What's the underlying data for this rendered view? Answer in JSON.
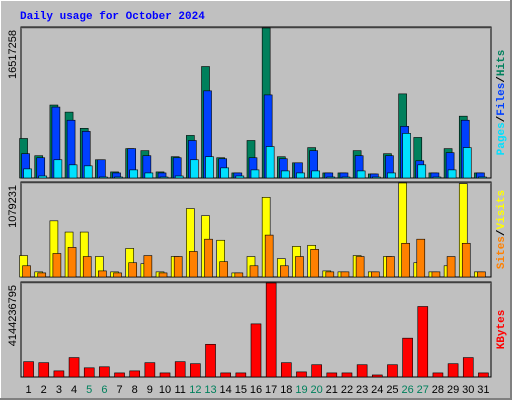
{
  "chart_data": {
    "type": "bar",
    "title": "Daily usage for October 2024",
    "legend_separator": "/",
    "categories": [
      "1",
      "2",
      "3",
      "4",
      "5",
      "6",
      "7",
      "8",
      "9",
      "10",
      "11",
      "12",
      "13",
      "14",
      "15",
      "16",
      "17",
      "18",
      "19",
      "20",
      "21",
      "22",
      "23",
      "24",
      "25",
      "26",
      "27",
      "28",
      "29",
      "30",
      "31"
    ],
    "category_colors": [
      "#000000",
      "#000000",
      "#000000",
      "#000000",
      "#00805c",
      "#00805c",
      "#000000",
      "#000000",
      "#000000",
      "#000000",
      "#000000",
      "#00805c",
      "#00805c",
      "#000000",
      "#000000",
      "#000000",
      "#000000",
      "#000000",
      "#00805c",
      "#00805c",
      "#000000",
      "#000000",
      "#000000",
      "#000000",
      "#000000",
      "#00805c",
      "#00805c",
      "#000000",
      "#000000",
      "#000000",
      "#000000"
    ],
    "panels": [
      {
        "ylim": [
          0,
          16517258
        ],
        "yticks": [
          16517258
        ],
        "series": [
          {
            "name": "Hits",
            "color": "#00805c",
            "values": [
              4352000,
              2455000,
              8035000,
              7254000,
              5469000,
              2009000,
              670000,
              3236000,
              3013000,
              670000,
              2344000,
              4687000,
              12276000,
              2232000,
              558000,
              4129000,
              16517258,
              2344000,
              1674000,
              3348000,
              558000,
              558000,
              3013000,
              446000,
              2678000,
              9263000,
              4464000,
              558000,
              3236000,
              6808000,
              558000
            ]
          },
          {
            "name": "Files",
            "color": "#0040ff",
            "values": [
              2678000,
              2232000,
              7812000,
              6361000,
              5134000,
              2009000,
              558000,
              3236000,
              2455000,
              558000,
              2232000,
              4129000,
              9598000,
              2120000,
              558000,
              2232000,
              9151000,
              2120000,
              1674000,
              3013000,
              558000,
              558000,
              2455000,
              446000,
              2455000,
              5692000,
              1897000,
              558000,
              2790000,
              6361000,
              558000
            ]
          },
          {
            "name": "Pages",
            "color": "#00e0ff",
            "values": [
              1004000,
              223000,
              2009000,
              1451000,
              1339000,
              112000,
              112000,
              893000,
              558000,
              112000,
              223000,
              2009000,
              2344000,
              1116000,
              223000,
              893000,
              3460000,
              781000,
              558000,
              781000,
              112000,
              112000,
              781000,
              112000,
              558000,
              4911000,
              1451000,
              112000,
              893000,
              3348000,
              112000
            ]
          }
        ]
      },
      {
        "ylim": [
          0,
          1079231
        ],
        "yticks": [
          1079231
        ],
        "series": [
          {
            "name": "Visits",
            "color": "#ffff00",
            "values": [
              246000,
              59000,
              645000,
              516000,
              516000,
              235000,
              59000,
              328000,
              153000,
              59000,
              235000,
              786000,
              704000,
              422000,
              47000,
              235000,
              915000,
              211000,
              352000,
              364000,
              70000,
              59000,
              246000,
              59000,
              235000,
              1079231,
              164000,
              59000,
              129000,
              1072000,
              59000
            ]
          },
          {
            "name": "Sites",
            "color": "#ff8000",
            "values": [
              129000,
              47000,
              270000,
              340000,
              235000,
              70000,
              47000,
              164000,
              246000,
              47000,
              235000,
              293000,
              434000,
              176000,
              47000,
              129000,
              481000,
              129000,
              235000,
              317000,
              59000,
              59000,
              235000,
              59000,
              235000,
              387000,
              434000,
              59000,
              235000,
              387000,
              59000
            ]
          }
        ]
      },
      {
        "ylim": [
          0,
          4144236795
        ],
        "yticks": [
          4144236795
        ],
        "series": [
          {
            "name": "KBytes",
            "color": "#ff0000",
            "values": [
              676000000,
              631000000,
              270000000,
              856000000,
              405000000,
              450000000,
              180000000,
              270000000,
              631000000,
              180000000,
              676000000,
              586000000,
              1442000000,
              180000000,
              180000000,
              2342000000,
              4144236795,
              631000000,
              225000000,
              541000000,
              180000000,
              180000000,
              541000000,
              90000000,
              541000000,
              1712000000,
              3108000000,
              180000000,
              586000000,
              856000000,
              180000000
            ]
          }
        ]
      }
    ]
  }
}
